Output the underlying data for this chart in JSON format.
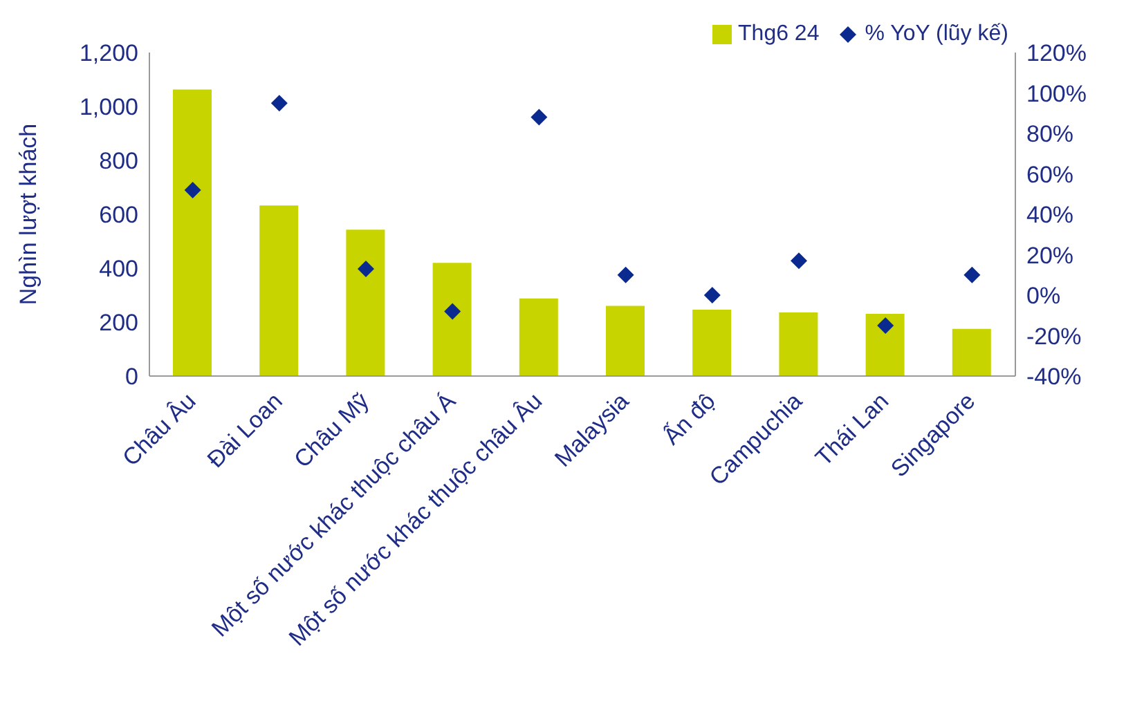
{
  "chart_data": {
    "type": "bar",
    "ylabel": "Nghìn lượt khách",
    "categories": [
      "Châu Âu",
      "Đài Loan",
      "Châu Mỹ",
      "Một số nước khác thuộc châu Á",
      "Một số nước khác thuộc châu Âu",
      "Malaysia",
      "Ấn độ",
      "Campuchia",
      "Thái Lan",
      "Singapore"
    ],
    "series": [
      {
        "name": "Thg6 24",
        "color": "#c8d400",
        "values": [
          1063,
          633,
          543,
          420,
          288,
          260,
          246,
          236,
          231,
          175
        ]
      },
      {
        "name": "% YoY (lũy kế)",
        "type": "scatter",
        "axis": "y2",
        "marker": "diamond",
        "color": "#0b2a8f",
        "values": [
          52,
          95,
          13,
          -8,
          88,
          10,
          0,
          17,
          -15,
          10
        ]
      }
    ],
    "ylim": [
      0,
      1200
    ],
    "yticks": [
      0,
      200,
      400,
      600,
      800,
      {
        "value": 1000,
        "label": "1,000"
      },
      {
        "value": 1200,
        "label": "1,200"
      }
    ],
    "y2lim": [
      -40,
      120
    ],
    "y2ticks": [
      {
        "value": -40,
        "label": "-40%"
      },
      {
        "value": -20,
        "label": "-20%"
      },
      {
        "value": 0,
        "label": "0%"
      },
      {
        "value": 20,
        "label": "20%"
      },
      {
        "value": 40,
        "label": "40%"
      },
      {
        "value": 60,
        "label": "60%"
      },
      {
        "value": 80,
        "label": "80%"
      },
      {
        "value": 100,
        "label": "100%"
      },
      {
        "value": 120,
        "label": "120%"
      }
    ],
    "legend": "top right"
  }
}
